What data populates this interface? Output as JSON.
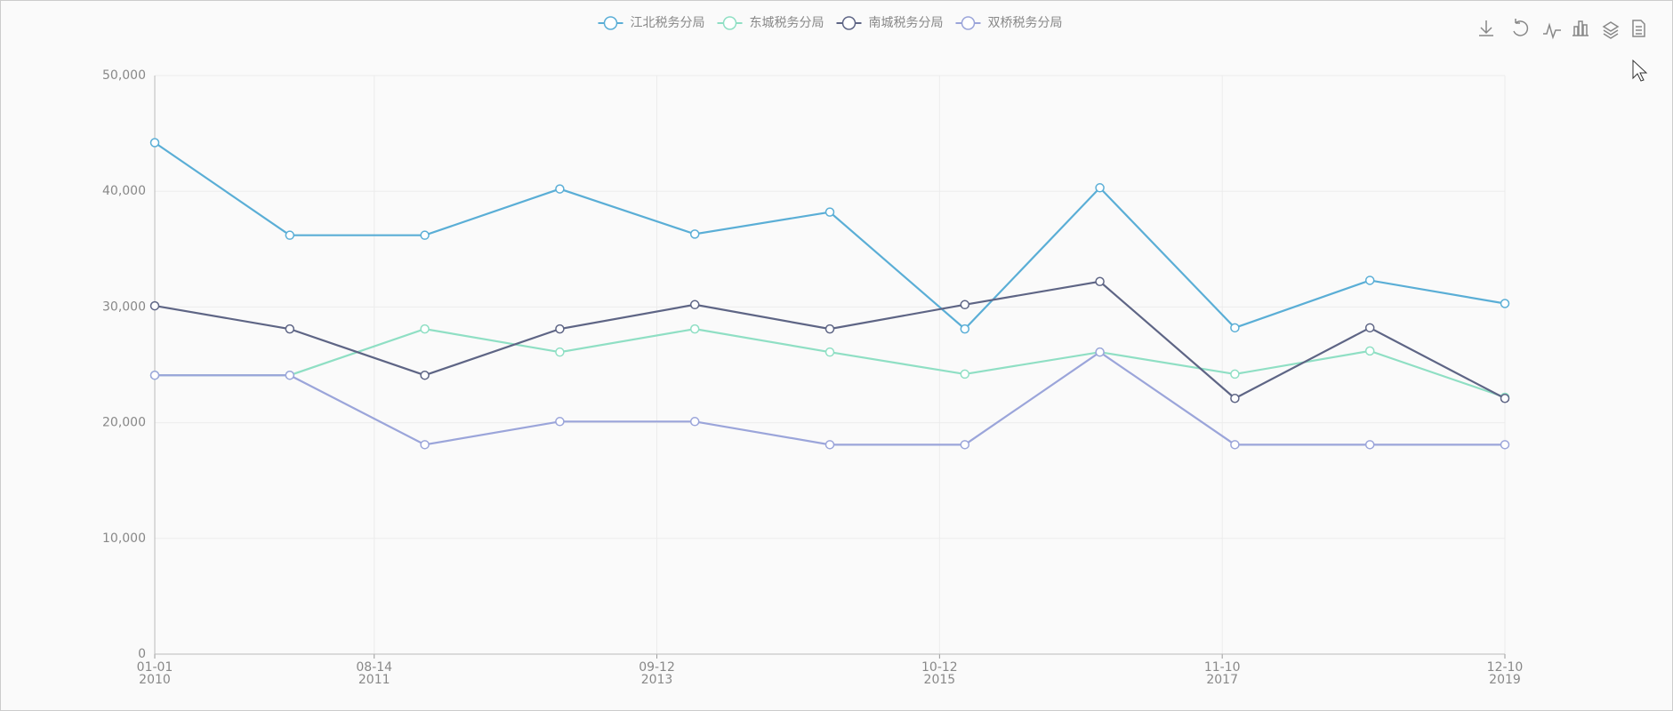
{
  "chart_data": {
    "type": "line",
    "x": [
      "2010-01-01",
      "2010-12-30",
      "2011-12-28",
      "2012-12-25",
      "2013-12-23",
      "2014-12-21",
      "2015-12-19",
      "2016-12-16",
      "2017-12-14",
      "2018-12-12",
      "2019-12-10"
    ],
    "series": [
      {
        "name": "江北税务分局",
        "color": "#5aaed6",
        "values": [
          44200,
          36200,
          36200,
          40200,
          36300,
          38200,
          28100,
          40300,
          28200,
          32300,
          30300
        ]
      },
      {
        "name": "东城税务分局",
        "color": "#8fdfc4",
        "values": [
          24100,
          24100,
          28100,
          26100,
          28100,
          26100,
          24200,
          26100,
          24200,
          26200,
          22200
        ]
      },
      {
        "name": "南城税务分局",
        "color": "#5e6585",
        "values": [
          30100,
          28100,
          24100,
          28100,
          30200,
          28100,
          30200,
          32200,
          22100,
          28200,
          22100
        ]
      },
      {
        "name": "双桥税务分局",
        "color": "#9ba5da",
        "values": [
          24100,
          24100,
          18100,
          20100,
          20100,
          18100,
          18100,
          26100,
          18100,
          18100,
          18100
        ]
      }
    ],
    "xlim": [
      "2010-01-01",
      "2019-12-10"
    ],
    "xticks": [
      {
        "value": "2010-01-01",
        "label": "01-01\n2010"
      },
      {
        "value": "2011-08-14",
        "label": "08-14\n2011"
      },
      {
        "value": "2013-09-12",
        "label": "09-12\n2013"
      },
      {
        "value": "2015-10-12",
        "label": "10-12\n2015"
      },
      {
        "value": "2017-11-10",
        "label": "11-10\n2017"
      },
      {
        "value": "2019-12-10",
        "label": "12-10\n2019"
      }
    ],
    "ylim": [
      0,
      50000
    ],
    "yticks": [
      0,
      {
        "value": 10000,
        "label": "10,000"
      },
      {
        "value": 20000,
        "label": "20,000"
      },
      {
        "value": 30000,
        "label": "30,000"
      },
      {
        "value": 40000,
        "label": "40,000"
      },
      {
        "value": 50000,
        "label": "50,000"
      }
    ],
    "grid": true
  }
}
